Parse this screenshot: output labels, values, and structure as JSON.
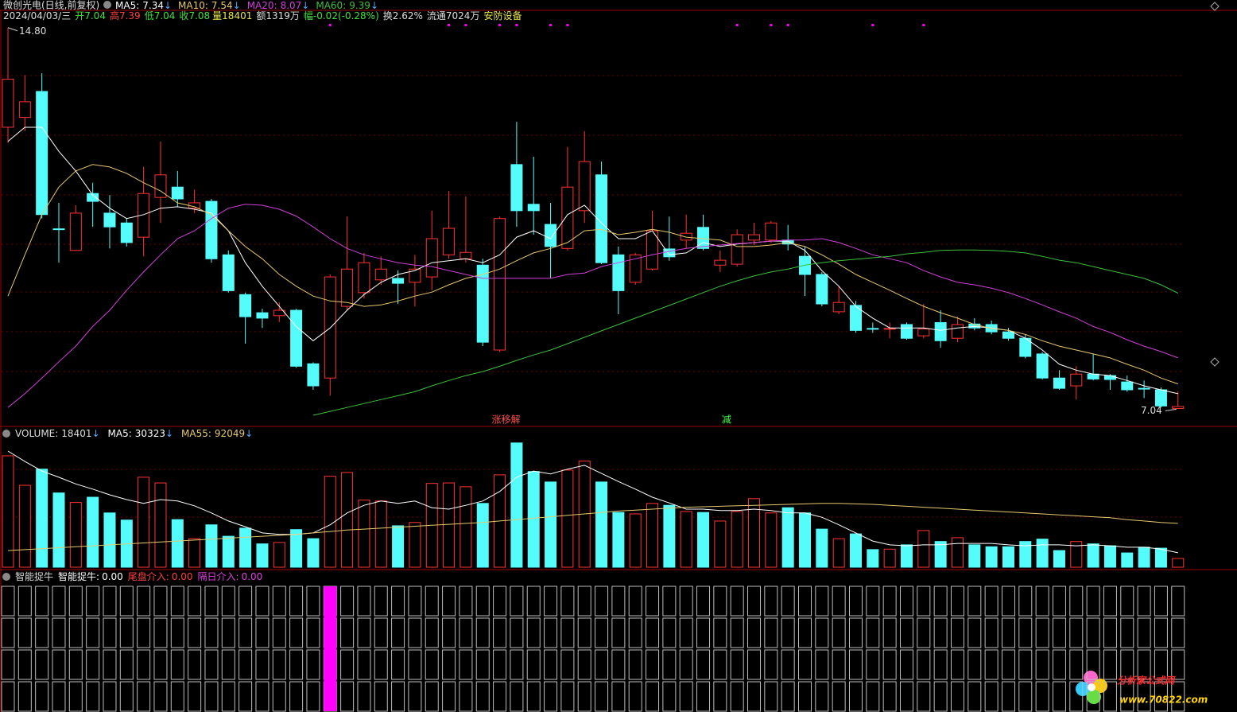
{
  "chart_data": {
    "type": "candlestick",
    "title": "微创光电(日线,前复权)",
    "info": {
      "date": "2024/04/03/三",
      "ohlc_labels": [
        "开",
        "高",
        "低",
        "收"
      ],
      "volume_label": "量",
      "extras": [
        "额1319万",
        "幅-0.02(-0.28%)",
        "换2.62%",
        "流通7024万",
        "安防设备"
      ]
    },
    "ylim": [
      6.69,
      15.12
    ],
    "grid": true,
    "up_color": "#ff3232",
    "down_color": "#54fcfc",
    "candles": {
      "open": [
        12.77,
        12.97,
        13.5,
        10.7,
        10.26,
        11.42,
        11.02,
        10.82,
        10.53,
        11.34,
        11.55,
        11.12,
        11.26,
        10.17,
        9.36,
        8.99,
        8.93,
        9.04,
        7.95,
        7.66,
        9.12,
        9.4,
        9.66,
        9.69,
        9.61,
        9.72,
        10.17,
        10.09,
        9.96,
        8.23,
        12.01,
        11.2,
        10.79,
        10.3,
        11.07,
        11.8,
        10.17,
        9.61,
        9.88,
        10.29,
        10.47,
        10.73,
        9.96,
        9.98,
        10.47,
        10.47,
        10.47,
        10.14,
        9.77,
        9.01,
        9.14,
        8.67,
        8.66,
        8.75,
        8.52,
        8.79,
        8.47,
        8.76,
        8.75,
        8.6,
        8.47,
        8.15,
        7.66,
        7.5,
        7.74,
        7.71,
        7.58,
        7.45,
        7.42,
        7.04
      ],
      "high": [
        14.8,
        13.83,
        13.87,
        11.23,
        11.18,
        11.64,
        11.39,
        10.91,
        11.96,
        12.48,
        11.88,
        11.5,
        11.31,
        10.26,
        9.4,
        9.07,
        9.2,
        9.07,
        7.98,
        9.77,
        10.95,
        10.21,
        10.14,
        9.85,
        10.17,
        11.07,
        11.47,
        11.36,
        10.09,
        10.95,
        12.88,
        12.17,
        11.23,
        12.37,
        12.69,
        12.07,
        10.34,
        10.21,
        11.07,
        10.95,
        10.99,
        10.99,
        10.26,
        10.69,
        10.82,
        10.86,
        10.78,
        10.34,
        9.82,
        9.53,
        9.23,
        8.79,
        8.79,
        8.79,
        9.17,
        9.04,
        8.91,
        8.88,
        8.83,
        8.68,
        8.55,
        8.19,
        7.82,
        7.9,
        8.15,
        7.74,
        7.71,
        7.61,
        7.47,
        7.39
      ],
      "low": [
        12.45,
        12.69,
        10.91,
        10.01,
        10.26,
        10.74,
        10.3,
        10.34,
        10.14,
        10.82,
        11.15,
        11.02,
        10.01,
        9.4,
        8.36,
        8.68,
        8.8,
        7.87,
        7.42,
        7.3,
        9.04,
        9.28,
        9.56,
        9.17,
        9.12,
        9.45,
        10.09,
        10.01,
        8.31,
        8.19,
        10.74,
        10.58,
        9.69,
        10.26,
        10.82,
        9.98,
        8.96,
        9.56,
        9.85,
        10.05,
        10.3,
        10.26,
        9.82,
        9.93,
        10.37,
        10.42,
        10.26,
        9.33,
        9.12,
        8.96,
        8.58,
        8.58,
        8.47,
        8.44,
        8.47,
        8.28,
        8.39,
        8.63,
        8.55,
        8.42,
        8.06,
        7.63,
        7.42,
        7.22,
        7.61,
        7.42,
        7.38,
        7.25,
        7.06,
        7.04
      ],
      "close": [
        13.75,
        13.29,
        10.99,
        10.7,
        11.02,
        11.26,
        10.74,
        10.42,
        11.42,
        11.8,
        11.31,
        11.23,
        10.09,
        9.44,
        8.91,
        8.88,
        9.04,
        7.9,
        7.5,
        9.72,
        9.88,
        10.01,
        9.88,
        9.59,
        9.88,
        10.5,
        10.71,
        10.22,
        8.39,
        10.91,
        11.07,
        11.07,
        10.34,
        11.55,
        12.07,
        10.01,
        9.44,
        10.17,
        10.66,
        10.13,
        10.61,
        10.3,
        10.06,
        10.58,
        10.58,
        10.82,
        10.39,
        9.77,
        9.17,
        9.2,
        8.63,
        8.66,
        8.67,
        8.47,
        8.66,
        8.42,
        8.75,
        8.68,
        8.6,
        8.47,
        8.1,
        7.66,
        7.45,
        7.74,
        7.64,
        7.63,
        7.42,
        7.44,
        7.09,
        7.08
      ]
    },
    "extreme_labels": {
      "high": "14.80",
      "low": "7.04"
    },
    "series": [
      {
        "name": "MA5:",
        "color": "#ffffff",
        "arrow": "↓",
        "values": [
          12.48,
          12.77,
          12.77,
          12.28,
          11.88,
          11.39,
          11.12,
          10.91,
          10.99,
          11.12,
          11.15,
          11.1,
          11.02,
          10.66,
          10.01,
          9.53,
          9.12,
          8.71,
          8.42,
          8.68,
          9.04,
          9.36,
          9.61,
          9.77,
          9.85,
          10.01,
          10.05,
          10.09,
          10.01,
          10.17,
          10.53,
          10.66,
          10.5,
          10.99,
          11.18,
          10.82,
          10.5,
          10.5,
          10.66,
          10.17,
          10.21,
          10.42,
          10.34,
          10.39,
          10.42,
          10.45,
          10.45,
          10.26,
          9.85,
          9.53,
          9.12,
          8.88,
          8.68,
          8.68,
          8.68,
          8.63,
          8.68,
          8.71,
          8.68,
          8.63,
          8.47,
          8.23,
          7.94,
          7.82,
          7.74,
          7.71,
          7.61,
          7.5,
          7.42,
          7.34
        ]
      },
      {
        "name": "MA10:",
        "color": "#e6c86e",
        "arrow": "↓",
        "values": [
          9.33,
          10.17,
          10.99,
          11.55,
          11.88,
          12.01,
          11.96,
          11.83,
          11.64,
          11.47,
          11.23,
          11.15,
          10.99,
          10.66,
          10.34,
          10.09,
          9.77,
          9.53,
          9.33,
          9.23,
          9.2,
          9.12,
          9.15,
          9.23,
          9.33,
          9.41,
          9.56,
          9.69,
          9.77,
          9.88,
          10.05,
          10.21,
          10.3,
          10.42,
          10.66,
          10.69,
          10.58,
          10.63,
          10.69,
          10.63,
          10.53,
          10.5,
          10.47,
          10.34,
          10.34,
          10.37,
          10.42,
          10.34,
          10.17,
          9.98,
          9.77,
          9.61,
          9.45,
          9.28,
          9.12,
          8.99,
          8.88,
          8.75,
          8.67,
          8.63,
          8.55,
          8.42,
          8.31,
          8.23,
          8.15,
          8.07,
          7.94,
          7.82,
          7.66,
          7.54
        ]
      },
      {
        "name": "MA20:",
        "color": "#d040d8",
        "arrow": "↓",
        "values": [
          7.06,
          7.34,
          7.66,
          7.99,
          8.31,
          8.71,
          9.04,
          9.45,
          9.82,
          10.17,
          10.5,
          10.66,
          10.91,
          11.12,
          11.2,
          11.18,
          11.1,
          10.96,
          10.74,
          10.5,
          10.3,
          10.17,
          10.09,
          10.01,
          9.96,
          9.93,
          9.85,
          9.77,
          9.69,
          9.69,
          9.69,
          9.69,
          9.69,
          9.77,
          9.8,
          9.93,
          10.01,
          10.09,
          10.17,
          10.24,
          10.3,
          10.34,
          10.37,
          10.4,
          10.42,
          10.45,
          10.47,
          10.47,
          10.5,
          10.42,
          10.3,
          10.17,
          10.09,
          10.01,
          9.85,
          9.72,
          9.61,
          9.56,
          9.49,
          9.4,
          9.28,
          9.15,
          9.01,
          8.88,
          8.71,
          8.59,
          8.44,
          8.31,
          8.2,
          8.07
        ]
      },
      {
        "name": "MA60:",
        "color": "#3cbf3c",
        "arrow": "↓",
        "values": [
          null,
          null,
          null,
          null,
          null,
          null,
          null,
          null,
          null,
          null,
          null,
          null,
          null,
          null,
          null,
          null,
          null,
          null,
          6.9,
          6.98,
          7.06,
          7.14,
          7.22,
          7.3,
          7.38,
          7.5,
          7.61,
          7.71,
          7.79,
          7.9,
          8.02,
          8.13,
          8.23,
          8.36,
          8.49,
          8.62,
          8.75,
          8.88,
          9.01,
          9.14,
          9.27,
          9.4,
          9.53,
          9.64,
          9.74,
          9.82,
          9.88,
          9.96,
          10.01,
          10.05,
          10.08,
          10.11,
          10.14,
          10.19,
          10.22,
          10.26,
          10.27,
          10.27,
          10.26,
          10.24,
          10.21,
          10.14,
          10.06,
          10.01,
          9.93,
          9.85,
          9.77,
          9.69,
          9.56,
          9.39
        ]
      }
    ],
    "top_markers": [
      19,
      26,
      27,
      29,
      30,
      32,
      33,
      43,
      45,
      46,
      51,
      54
    ],
    "annotations": [
      {
        "text": "涨移解",
        "index": 29,
        "color": "#ff5050"
      },
      {
        "text": "减",
        "index": 42,
        "color": "#40ff40"
      }
    ],
    "volume": {
      "name": "VOLUME:",
      "arrow": "↓",
      "ylim": [
        0,
        264000
      ],
      "values": [
        234000,
        172000,
        206000,
        156000,
        136000,
        147000,
        114000,
        99000,
        189000,
        177000,
        100000,
        60000,
        89000,
        65000,
        82000,
        49000,
        52000,
        79000,
        60000,
        191000,
        199000,
        141000,
        139000,
        87000,
        94000,
        176000,
        177000,
        169000,
        134000,
        194000,
        261000,
        201000,
        179000,
        204000,
        223000,
        179000,
        115000,
        112000,
        134000,
        130000,
        117000,
        115000,
        97000,
        117000,
        144000,
        114000,
        125000,
        114000,
        80000,
        60000,
        70000,
        37000,
        38000,
        47000,
        77000,
        54000,
        62000,
        47000,
        43000,
        43000,
        54000,
        59000,
        35000,
        54000,
        49000,
        45000,
        30000,
        42000,
        40000,
        18401
      ],
      "series": [
        {
          "name": "MA5:",
          "color": "#ffffff",
          "arrow": "↓",
          "values": [
            244000,
            222000,
            202000,
            189000,
            175000,
            164000,
            152000,
            142000,
            134000,
            142000,
            139000,
            129000,
            114000,
            97000,
            85000,
            72000,
            69000,
            69000,
            72000,
            89000,
            114000,
            130000,
            139000,
            134000,
            139000,
            125000,
            122000,
            130000,
            139000,
            159000,
            189000,
            202000,
            196000,
            206000,
            214000,
            197000,
            180000,
            164000,
            147000,
            135000,
            122000,
            122000,
            119000,
            119000,
            122000,
            119000,
            114000,
            114000,
            105000,
            89000,
            72000,
            55000,
            47000,
            45000,
            47000,
            47000,
            50000,
            50000,
            50000,
            47000,
            45000,
            47000,
            47000,
            45000,
            47000,
            45000,
            42000,
            42000,
            38000,
            30323
          ]
        },
        {
          "name": "MA55:",
          "color": "#e6c86e",
          "arrow": "↓",
          "values": [
            35000,
            37000,
            39000,
            41000,
            43000,
            45000,
            47000,
            49000,
            51000,
            53000,
            55000,
            57000,
            59000,
            61000,
            63000,
            65000,
            67000,
            69000,
            72000,
            75000,
            78000,
            80000,
            82000,
            84000,
            86000,
            88000,
            90000,
            92000,
            94000,
            97000,
            100000,
            103000,
            106000,
            109000,
            112000,
            115000,
            118000,
            120000,
            122000,
            124000,
            126000,
            127000,
            128000,
            129000,
            130000,
            131000,
            132000,
            133000,
            134000,
            134000,
            133000,
            132000,
            130000,
            128000,
            126000,
            124000,
            122000,
            120000,
            118000,
            116000,
            114000,
            112000,
            110000,
            108000,
            106000,
            104000,
            100000,
            97000,
            94000,
            92049
          ]
        }
      ]
    },
    "indicator": {
      "title": "智能捉牛",
      "names": [
        "智能捉牛:",
        "尾盘介入:",
        "隔日介入:"
      ],
      "colors": [
        "#ffffff",
        "#ff4040",
        "#e040e0"
      ],
      "values": [
        0,
        0,
        0
      ],
      "value_labels": [
        "0.00",
        "0.00",
        "0.00"
      ],
      "signal_columns": [
        19
      ],
      "signal_color": "#ff00ff"
    },
    "watermark": {
      "title": "分析家公式网",
      "url": "www.70822.com"
    }
  }
}
